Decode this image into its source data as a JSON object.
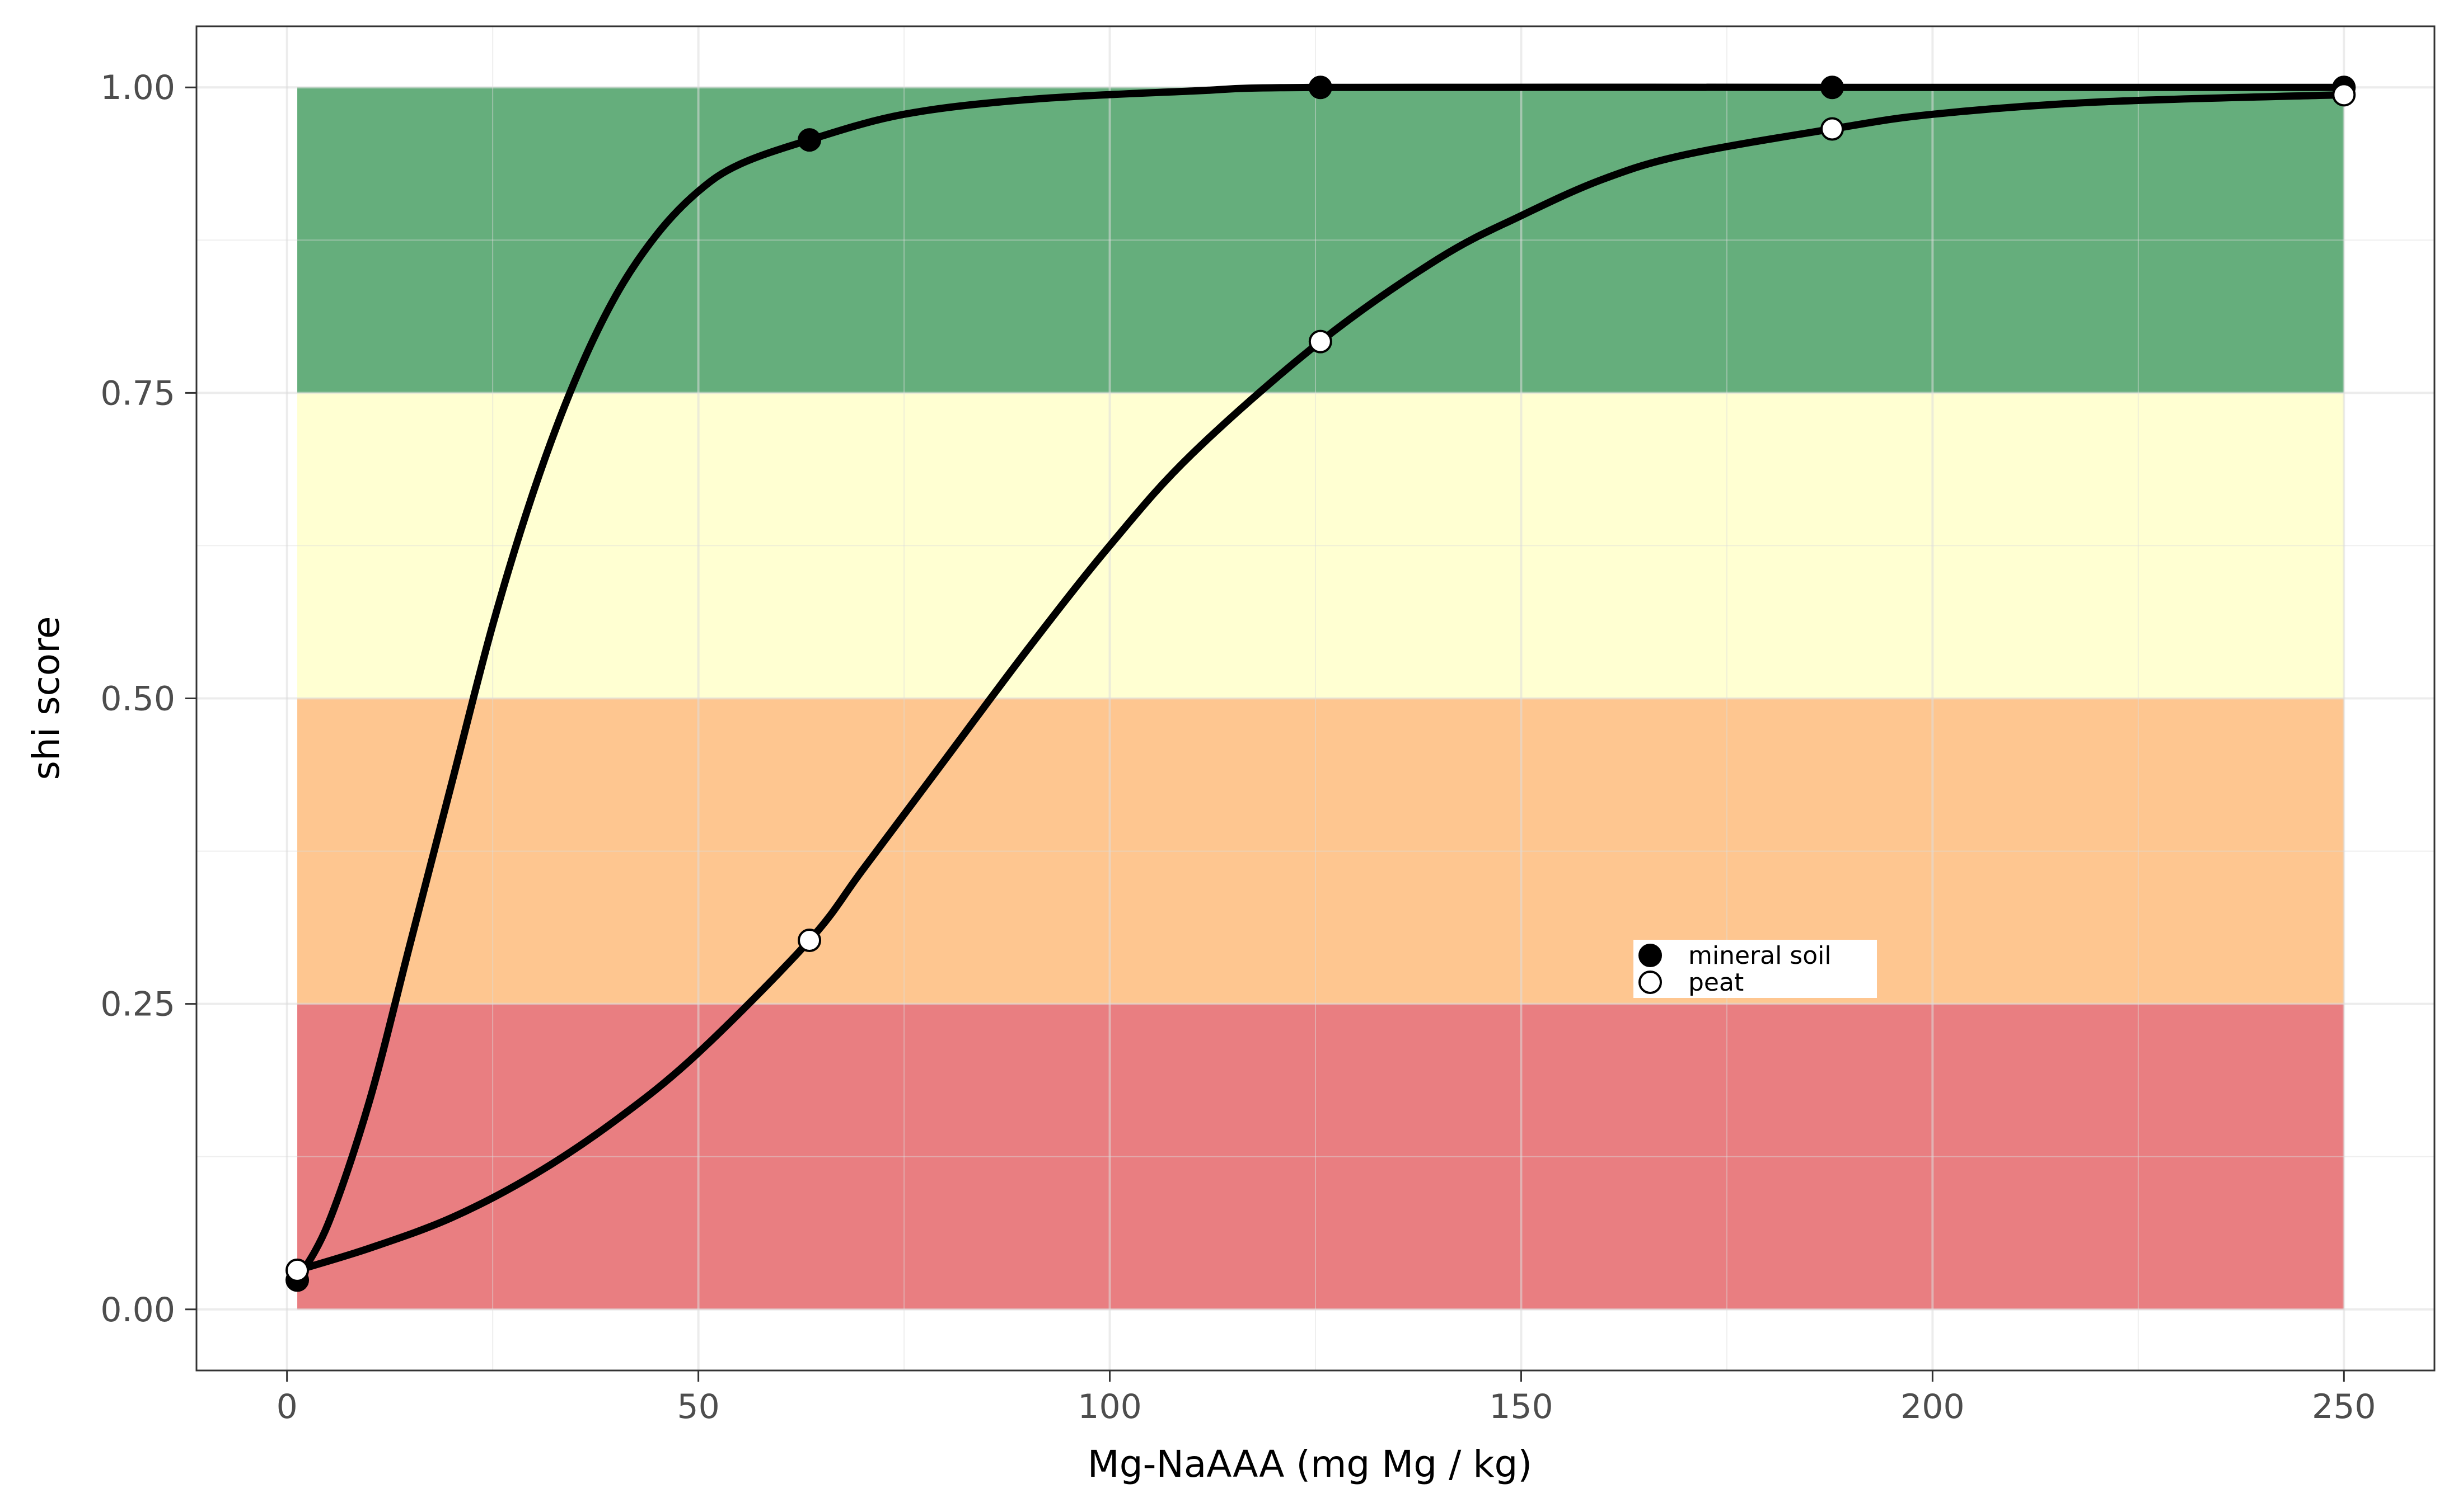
{
  "chart_data": {
    "type": "line",
    "title": "",
    "xlabel": "Mg-NaAAA (mg Mg / kg)",
    "ylabel": "shi score",
    "xlim": [
      -11,
      261
    ],
    "ylim": [
      -0.05,
      1.05
    ],
    "x_ticks": [
      0,
      50,
      100,
      150,
      200,
      250
    ],
    "x_tick_labels": [
      "0",
      "50",
      "100",
      "150",
      "200",
      "250"
    ],
    "y_ticks": [
      0,
      0.25,
      0.5,
      0.75,
      1.0
    ],
    "y_tick_labels": [
      "0.00",
      "0.25",
      "0.50",
      "0.75",
      "1.00"
    ],
    "grid": true,
    "bands": [
      {
        "ymin": 0.0,
        "ymax": 0.25,
        "xmin": 1.25,
        "xmax": 250,
        "color": "#e0474c"
      },
      {
        "ymin": 0.25,
        "ymax": 0.5,
        "xmin": 1.25,
        "xmax": 250,
        "color": "#fdae61"
      },
      {
        "ymin": 0.5,
        "ymax": 0.75,
        "xmin": 1.25,
        "xmax": 250,
        "color": "#ffffbf"
      },
      {
        "ymin": 0.75,
        "ymax": 1.0,
        "xmin": 1.25,
        "xmax": 250,
        "color": "#238b45"
      }
    ],
    "series": [
      {
        "name": "mineral soil",
        "marker": "filled",
        "x": [
          1.25,
          63.5,
          125.6,
          187.8,
          250
        ],
        "y": [
          0.024,
          0.957,
          1.0,
          1.0,
          1.0
        ],
        "curve": [
          [
            1.25,
            0.024
          ],
          [
            5,
            0.07
          ],
          [
            10,
            0.17
          ],
          [
            15,
            0.3
          ],
          [
            20,
            0.43
          ],
          [
            25,
            0.56
          ],
          [
            30,
            0.67
          ],
          [
            35,
            0.76
          ],
          [
            40,
            0.83
          ],
          [
            45,
            0.88
          ],
          [
            50,
            0.915
          ],
          [
            55,
            0.937
          ],
          [
            63.5,
            0.957
          ],
          [
            75,
            0.978
          ],
          [
            90,
            0.99
          ],
          [
            110,
            0.997
          ],
          [
            125.6,
            1.0
          ],
          [
            187.8,
            1.0
          ],
          [
            250,
            1.0
          ]
        ]
      },
      {
        "name": "peat",
        "marker": "open",
        "x": [
          1.25,
          63.5,
          125.6,
          187.8,
          250
        ],
        "y": [
          0.032,
          0.302,
          0.792,
          0.966,
          0.994
        ],
        "curve": [
          [
            1.25,
            0.032
          ],
          [
            10,
            0.05
          ],
          [
            20,
            0.075
          ],
          [
            30,
            0.11
          ],
          [
            40,
            0.155
          ],
          [
            50,
            0.21
          ],
          [
            63.5,
            0.302
          ],
          [
            70,
            0.36
          ],
          [
            80,
            0.45
          ],
          [
            90,
            0.54
          ],
          [
            100,
            0.625
          ],
          [
            110,
            0.7
          ],
          [
            125.6,
            0.792
          ],
          [
            140,
            0.86
          ],
          [
            150,
            0.895
          ],
          [
            160,
            0.925
          ],
          [
            170,
            0.945
          ],
          [
            187.8,
            0.966
          ],
          [
            200,
            0.978
          ],
          [
            220,
            0.988
          ],
          [
            250,
            0.994
          ]
        ]
      }
    ],
    "legend": {
      "position": "inside-lower-right",
      "entries": [
        "mineral soil",
        "peat"
      ]
    }
  }
}
